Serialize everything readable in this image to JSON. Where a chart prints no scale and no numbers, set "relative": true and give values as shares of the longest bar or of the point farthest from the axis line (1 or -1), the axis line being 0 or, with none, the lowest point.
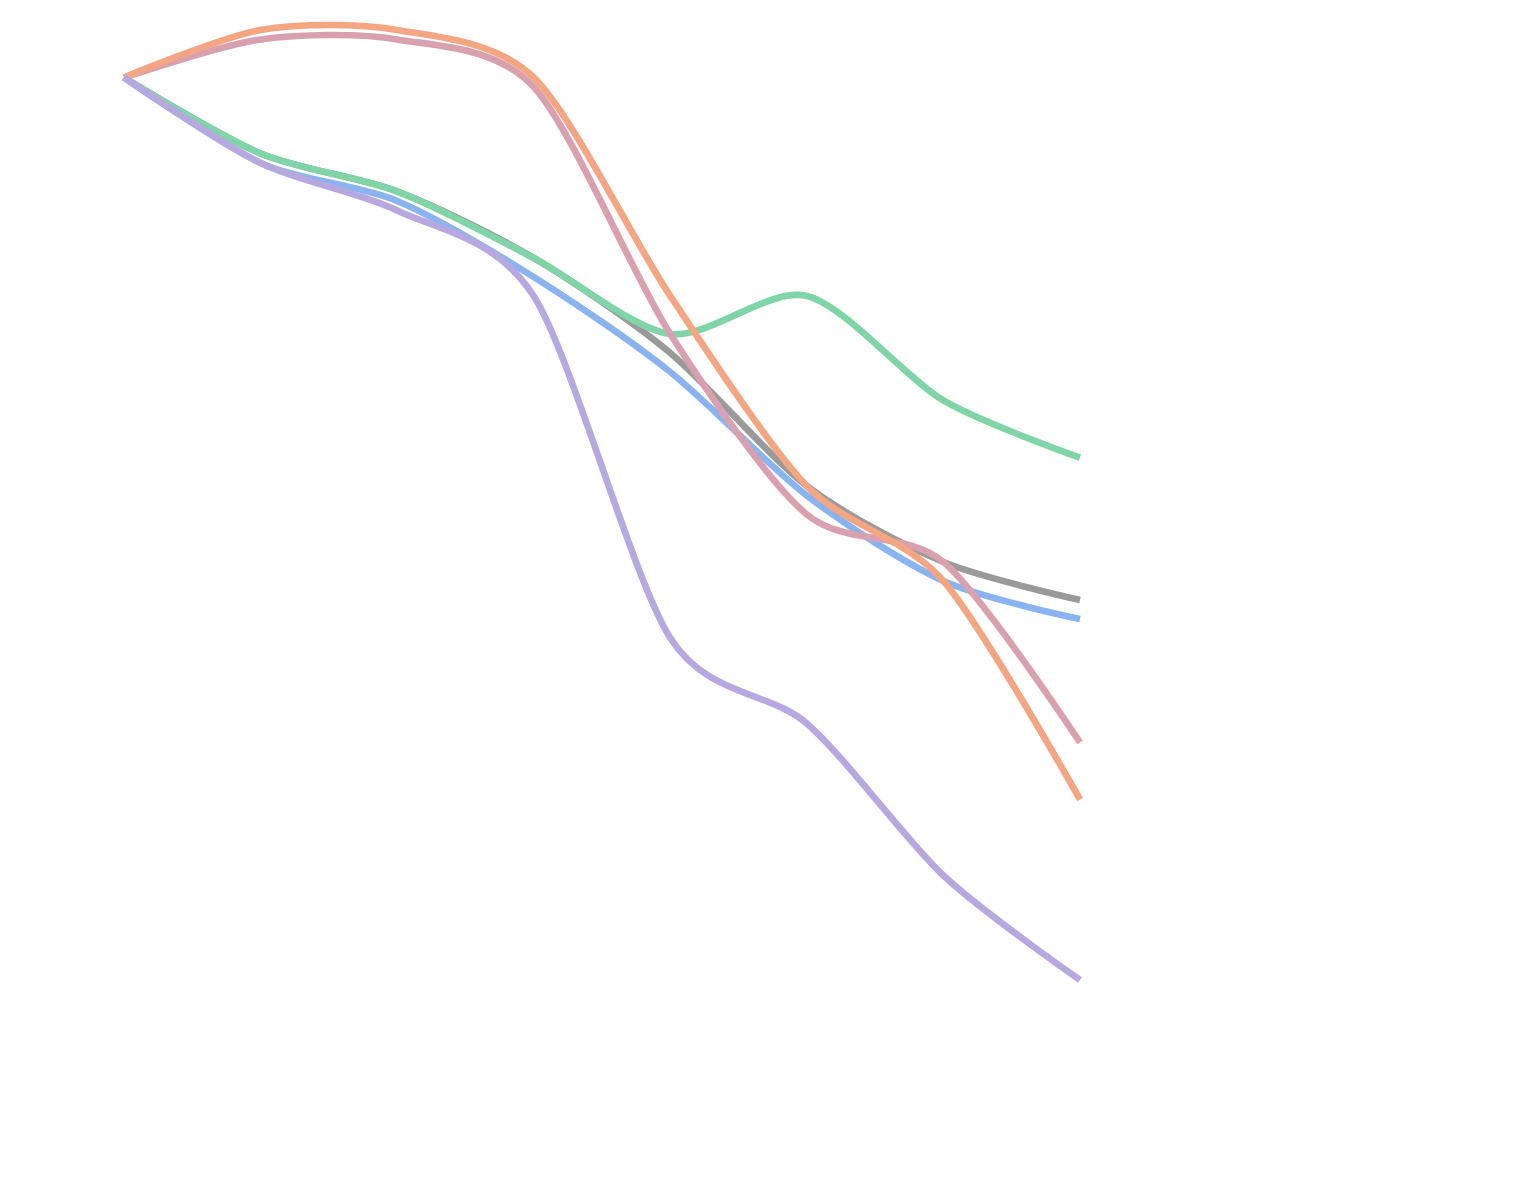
{
  "chart_data": {
    "type": "line",
    "relative": true,
    "categories": [
      null,
      null,
      null,
      null,
      null,
      null,
      null,
      null
    ],
    "marker": "none",
    "line_style": "solid",
    "series": [
      {
        "color": "#9a9a9a",
        "values": [
          0.95,
          0.87,
          0.83,
          0.76,
          0.66,
          0.52,
          0.44,
          0.4
        ]
      },
      {
        "color": "#8ab4f0",
        "values": [
          0.95,
          0.86,
          0.82,
          0.74,
          0.64,
          0.51,
          0.42,
          0.38
        ]
      },
      {
        "color": "#7fd4a8",
        "values": [
          0.95,
          0.87,
          0.83,
          0.76,
          0.68,
          0.72,
          0.61,
          0.55
        ]
      },
      {
        "color": "#d9a0b0",
        "values": [
          0.95,
          0.99,
          0.99,
          0.94,
          0.68,
          0.49,
          0.44,
          0.25
        ]
      },
      {
        "color": "#f4a582",
        "values": [
          0.95,
          1.0,
          1.0,
          0.95,
          0.72,
          0.52,
          0.42,
          0.19
        ]
      },
      {
        "color": "#b8a8e0",
        "values": [
          0.95,
          0.86,
          0.81,
          0.72,
          0.36,
          0.27,
          0.11,
          0.0
        ]
      }
    ]
  }
}
